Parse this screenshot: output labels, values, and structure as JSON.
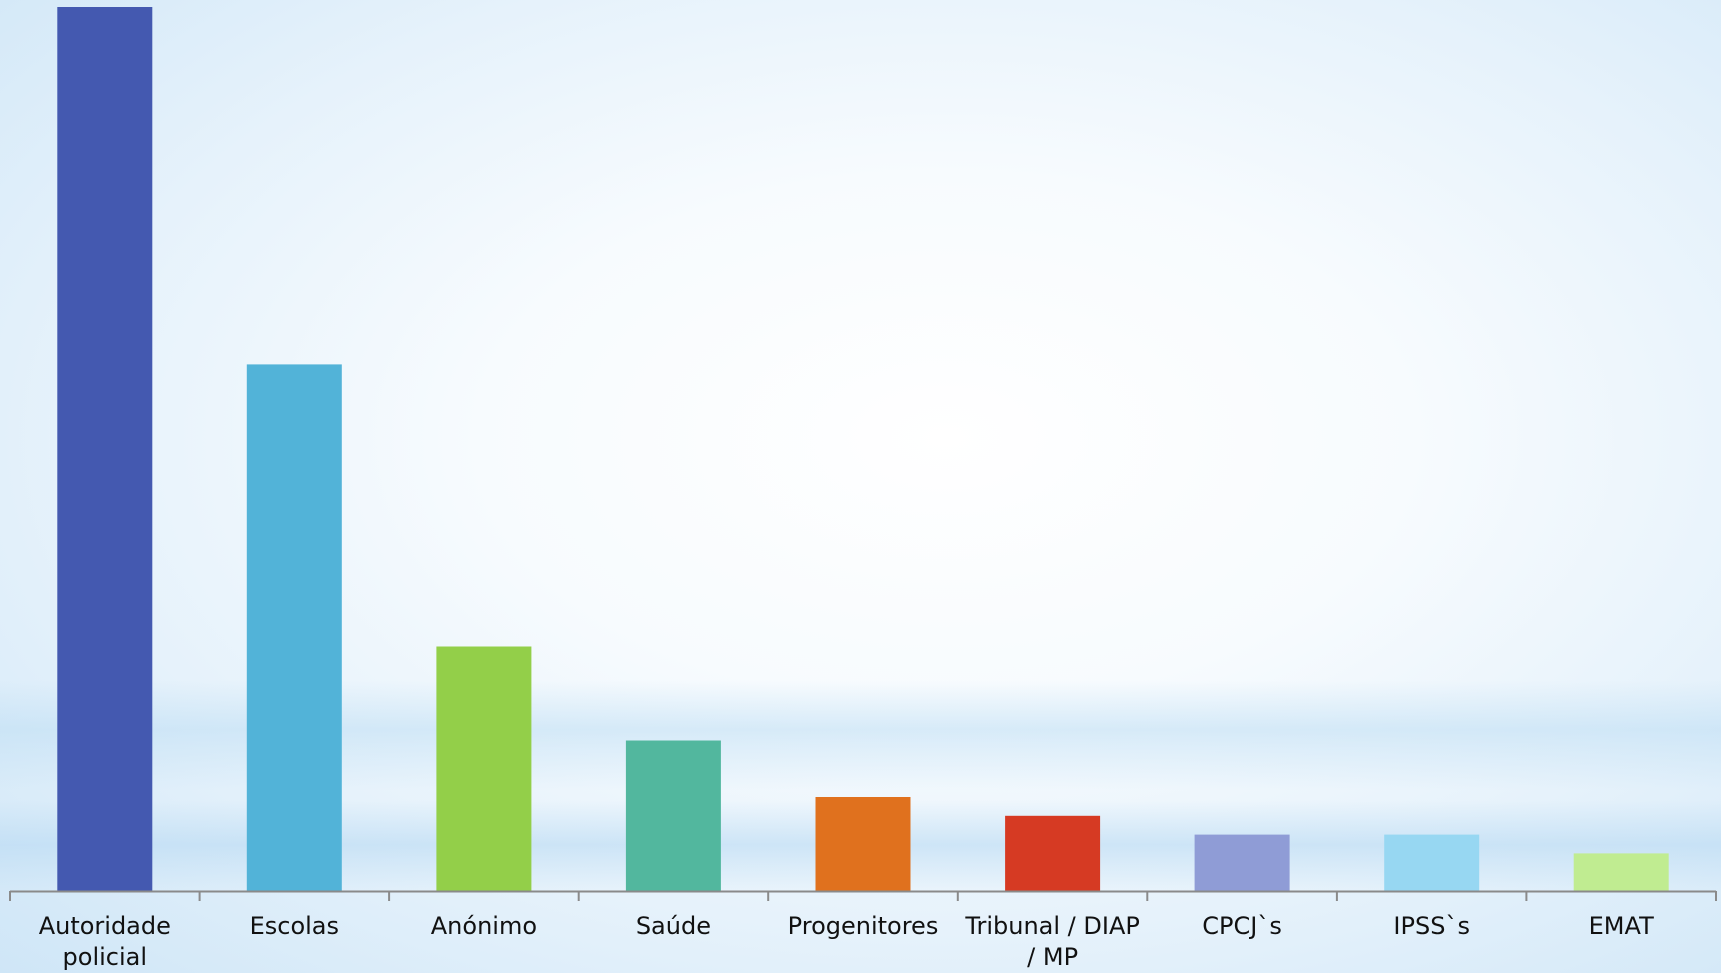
{
  "chart_data": {
    "type": "bar",
    "title": "",
    "xlabel": "",
    "ylabel": "",
    "categories": [
      [
        "Autoridade",
        "policial"
      ],
      [
        "Escolas"
      ],
      [
        "Anónimo"
      ],
      [
        "Saúde"
      ],
      [
        "Progenitores"
      ],
      [
        "Tribunal / DIAP",
        "/ MP"
      ],
      [
        "CPCJ`s"
      ],
      [
        "IPSS`s"
      ],
      [
        "EMAT"
      ]
    ],
    "values": [
      47,
      28,
      13,
      8,
      5,
      4,
      3,
      3,
      2
    ],
    "ylim": [
      0,
      47
    ],
    "colors": [
      "#4459b0",
      "#52b3d8",
      "#93cf49",
      "#52b79e",
      "#e0711e",
      "#d63a23",
      "#8f9cd6",
      "#97d7f2",
      "#c0ec91"
    ],
    "axis_color": "#8a8a8a",
    "grid": false,
    "legend": "none"
  }
}
